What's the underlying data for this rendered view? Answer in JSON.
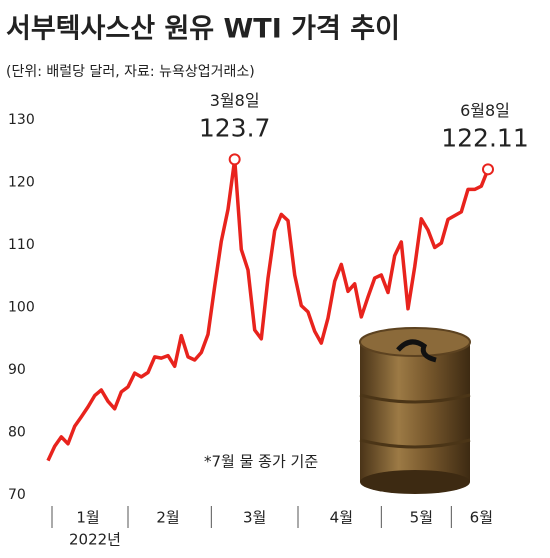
{
  "chart_data": {
    "type": "line",
    "title": "서부텍사스산 원유 WTI 가격 추이",
    "subtitle": "(단위: 배럴당 달러, 자료: 뉴욕상업거래소)",
    "note": "*7월 물 종가 기준",
    "xlabel": "2022년",
    "categories": [
      null,
      null,
      null,
      null,
      null,
      null,
      "1월",
      null,
      null,
      null,
      null,
      null,
      null,
      null,
      null,
      null,
      null,
      null,
      "2월",
      null,
      null,
      null,
      null,
      null,
      null,
      null,
      null,
      null,
      null,
      null,
      null,
      "3월",
      null,
      null,
      null,
      null,
      null,
      null,
      null,
      null,
      null,
      null,
      null,
      null,
      "4월",
      null,
      null,
      null,
      null,
      null,
      null,
      null,
      null,
      null,
      null,
      null,
      "5월",
      null,
      null,
      null,
      null,
      null,
      null,
      null,
      null,
      "6월",
      null
    ],
    "values": [
      75.5,
      77.8,
      79.3,
      78.2,
      81.0,
      82.5,
      84.1,
      85.9,
      86.8,
      85.0,
      83.8,
      86.5,
      87.3,
      89.5,
      88.9,
      89.6,
      92.1,
      91.9,
      92.3,
      90.6,
      95.5,
      92.1,
      91.6,
      92.8,
      95.7,
      103.4,
      110.6,
      115.7,
      123.7,
      109.3,
      106.0,
      96.4,
      95.0,
      104.7,
      112.3,
      114.9,
      113.9,
      105.2,
      100.3,
      99.3,
      96.2,
      94.3,
      98.3,
      104.2,
      106.9,
      102.6,
      103.8,
      98.5,
      101.7,
      104.7,
      105.2,
      102.4,
      108.3,
      110.5,
      99.8,
      106.5,
      114.2,
      112.4,
      109.6,
      110.3,
      114.1,
      114.7,
      115.3,
      118.9,
      118.9,
      119.4,
      122.11
    ],
    "color": "#e8231d",
    "annotations": [
      {
        "text": "3월8일",
        "value": 123.7
      },
      {
        "text": "6월8일",
        "value": 122.11
      }
    ],
    "ylim": [
      70,
      130
    ],
    "yticks": [
      70,
      80,
      90,
      100,
      110,
      120,
      130
    ],
    "grid": false
  }
}
